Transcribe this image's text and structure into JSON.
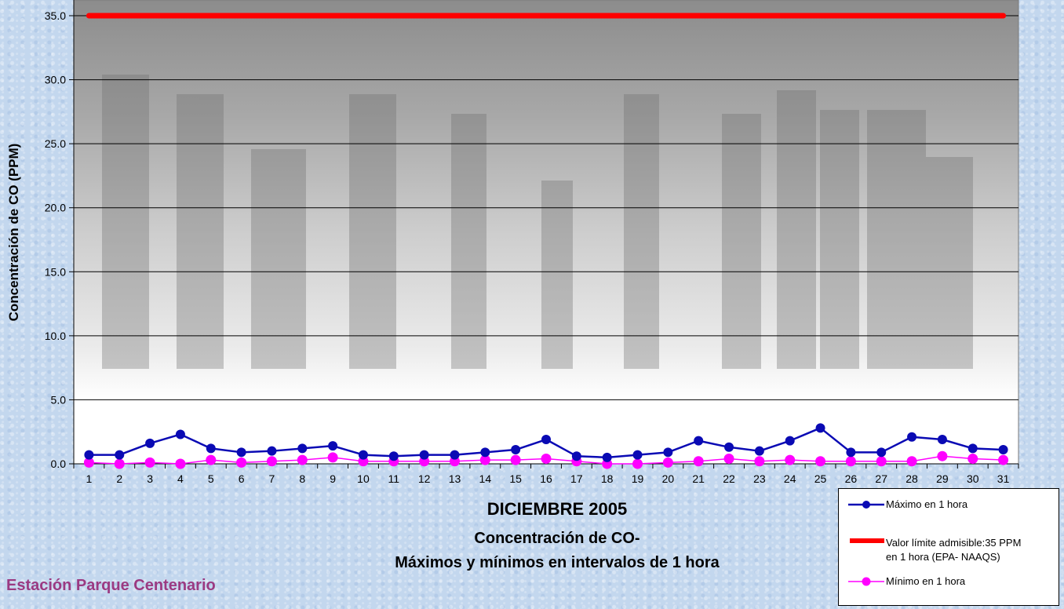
{
  "chart_data": {
    "type": "line",
    "title": "DICIEMBRE 2005",
    "subtitle_line1": "Concentración de CO-",
    "subtitle_line2": "Máximos y mínimos en intervalos de 1 hora",
    "ylabel": "Concentración de CO (PPM)",
    "ylim": [
      0,
      35
    ],
    "yticks": [
      0.0,
      5.0,
      10.0,
      15.0,
      20.0,
      25.0,
      30.0,
      35.0
    ],
    "ytick_labels": [
      "0.0",
      "5.0",
      "10.0",
      "15.0",
      "20.0",
      "25.0",
      "30.0",
      "35.0"
    ],
    "x": [
      1,
      2,
      3,
      4,
      5,
      6,
      7,
      8,
      9,
      10,
      11,
      12,
      13,
      14,
      15,
      16,
      17,
      18,
      19,
      20,
      21,
      22,
      23,
      24,
      25,
      26,
      27,
      28,
      29,
      30,
      31
    ],
    "grid": true,
    "legend_position": "bottom-right",
    "series": [
      {
        "name": "Máximo en 1 hora",
        "color": "#0a0ab4",
        "marker": "circle",
        "values": [
          0.7,
          0.7,
          1.6,
          2.3,
          1.2,
          0.9,
          1.0,
          1.2,
          1.4,
          0.7,
          0.6,
          0.7,
          0.7,
          0.9,
          1.1,
          1.9,
          0.6,
          0.5,
          0.7,
          0.9,
          1.8,
          1.3,
          1.0,
          1.8,
          2.8,
          0.9,
          0.9,
          2.1,
          1.9,
          1.2,
          1.1
        ]
      },
      {
        "name_line1": "Valor límite admisible:35 PPM",
        "name_line2": "en 1 hora (EPA- NAAQS)",
        "color": "#ff0000",
        "marker": "none",
        "values": [
          35,
          35,
          35,
          35,
          35,
          35,
          35,
          35,
          35,
          35,
          35,
          35,
          35,
          35,
          35,
          35,
          35,
          35,
          35,
          35,
          35,
          35,
          35,
          35,
          35,
          35,
          35,
          35,
          35,
          35,
          35
        ]
      },
      {
        "name": "Mínimo en 1 hora",
        "color": "#ff00ff",
        "marker": "circle",
        "values": [
          0.1,
          0.0,
          0.1,
          0.0,
          0.3,
          0.1,
          0.2,
          0.3,
          0.5,
          0.2,
          0.2,
          0.2,
          0.2,
          0.3,
          0.3,
          0.4,
          0.2,
          0.0,
          0.0,
          0.1,
          0.2,
          0.4,
          0.2,
          0.3,
          0.2,
          0.2,
          0.2,
          0.2,
          0.6,
          0.4,
          0.3
        ]
      }
    ]
  },
  "station": "Estación Parque Centenario"
}
